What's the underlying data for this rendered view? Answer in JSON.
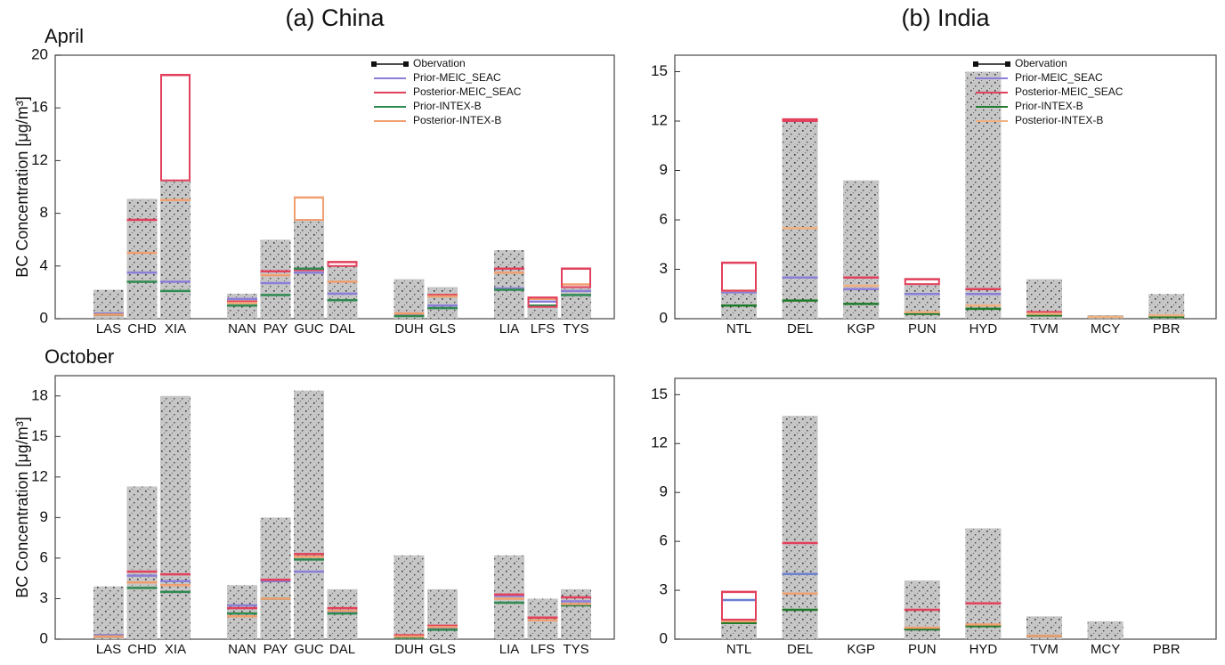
{
  "chart_data": [
    {
      "type": "bar",
      "title": "(a) China",
      "row_label": "April",
      "y_label": "BC Concentration [μg/m³]",
      "categories": [
        "LAS",
        "CHD",
        "XIA",
        null,
        "NAN",
        "PAY",
        "GUC",
        "DAL",
        null,
        "DUH",
        "GLS",
        null,
        "LIA",
        "LFS",
        "TYS"
      ],
      "ylim": [
        0,
        20
      ],
      "yticks": [
        0,
        4,
        8,
        12,
        16,
        20
      ],
      "legend": true,
      "legend_loc": "upper right",
      "series": [
        {
          "name": "Obervation",
          "color": "#c6c6c6",
          "values": [
            2.2,
            9.1,
            10.5,
            null,
            1.9,
            6.0,
            7.5,
            4.0,
            null,
            3.0,
            2.4,
            null,
            5.2,
            0.9,
            2.4
          ]
        },
        {
          "name": "Prior-MEIC_SEAC",
          "color": "#8a7fd8",
          "values": [
            0.4,
            3.5,
            2.8,
            null,
            1.5,
            2.7,
            3.5,
            1.9,
            null,
            0.3,
            1.0,
            null,
            2.3,
            1.3,
            2.1
          ]
        },
        {
          "name": "Posterior-MEIC_SEAC",
          "color": "#e2405c",
          "values": [
            0.3,
            7.5,
            18.5,
            null,
            1.3,
            3.6,
            3.7,
            4.3,
            null,
            0.4,
            1.8,
            null,
            3.8,
            1.6,
            3.8
          ]
        },
        {
          "name": "Prior-INTEX-B",
          "color": "#2e8a50",
          "values": [
            0.3,
            2.8,
            2.1,
            null,
            1.0,
            1.8,
            3.8,
            1.4,
            null,
            0.2,
            0.8,
            null,
            2.2,
            1.0,
            1.8
          ]
        },
        {
          "name": "Posterior-INTEX-B",
          "color": "#f0a070",
          "values": [
            0.3,
            5.0,
            9.0,
            null,
            1.2,
            3.3,
            9.2,
            2.8,
            null,
            0.4,
            1.7,
            null,
            3.5,
            1.5,
            2.6
          ]
        }
      ]
    },
    {
      "type": "bar",
      "title": "(b) India",
      "categories": [
        "NTL",
        "DEL",
        "KGP",
        "PUN",
        "HYD",
        "TVM",
        "MCY",
        "PBR"
      ],
      "ylim": [
        0,
        16
      ],
      "yticks": [
        0,
        3,
        6,
        9,
        12,
        15
      ],
      "legend": true,
      "legend_loc": "upper right",
      "series": [
        {
          "name": "Obervation",
          "color": "#c6c6c6",
          "values": [
            1.7,
            12.0,
            8.4,
            2.1,
            15.0,
            2.4,
            0.2,
            1.5
          ]
        },
        {
          "name": "Prior-MEIC_SEAC",
          "color": "#8a7fd8",
          "values": [
            1.6,
            2.5,
            1.8,
            1.5,
            1.5,
            0.3,
            0.1,
            0.2
          ]
        },
        {
          "name": "Posterior-MEIC_SEAC",
          "color": "#e2405c",
          "values": [
            3.4,
            12.1,
            2.5,
            2.4,
            1.8,
            0.4,
            0.1,
            0.2
          ]
        },
        {
          "name": "Prior-INTEX-B",
          "color": "#1f7a2a",
          "values": [
            0.8,
            1.1,
            0.9,
            0.3,
            0.6,
            0.2,
            0.1,
            0.1
          ]
        },
        {
          "name": "Posterior-INTEX-B",
          "color": "#f0b080",
          "values": [
            1.7,
            5.5,
            2.0,
            0.4,
            0.8,
            0.3,
            0.1,
            0.2
          ]
        }
      ]
    },
    {
      "type": "bar",
      "row_label": "October",
      "y_label": "BC Concentration [μg/m³]",
      "categories": [
        "LAS",
        "CHD",
        "XIA",
        null,
        "NAN",
        "PAY",
        "GUC",
        "DAL",
        null,
        "DUH",
        "GLS",
        null,
        "LIA",
        "LFS",
        "TYS"
      ],
      "ylim": [
        0,
        19.5
      ],
      "yticks": [
        0,
        3,
        6,
        9,
        12,
        15,
        18
      ],
      "legend": false,
      "series": [
        {
          "name": "Obervation",
          "color": "#c6c6c6",
          "values": [
            3.9,
            11.3,
            18.0,
            null,
            4.0,
            9.0,
            18.4,
            3.7,
            null,
            6.2,
            3.7,
            null,
            6.2,
            3.0,
            3.7
          ]
        },
        {
          "name": "Prior-MEIC_SEAC",
          "color": "#8a7fd8",
          "values": [
            0.3,
            4.7,
            4.3,
            null,
            2.5,
            4.3,
            5.0,
            2.0,
            null,
            0.2,
            0.8,
            null,
            3.2,
            1.6,
            2.8
          ]
        },
        {
          "name": "Posterior-MEIC_SEAC",
          "color": "#e2405c",
          "values": [
            0.2,
            5.0,
            4.8,
            null,
            2.3,
            4.4,
            6.3,
            2.3,
            null,
            0.3,
            1.0,
            null,
            3.3,
            1.6,
            3.1
          ]
        },
        {
          "name": "Prior-INTEX-B",
          "color": "#2e8a50",
          "values": [
            0.2,
            3.8,
            3.5,
            null,
            1.9,
            3.0,
            5.9,
            1.9,
            null,
            0.1,
            0.7,
            null,
            2.7,
            1.4,
            2.5
          ]
        },
        {
          "name": "Posterior-INTEX-B",
          "color": "#f0a070",
          "values": [
            0.2,
            4.2,
            4.0,
            null,
            1.7,
            3.0,
            6.1,
            2.1,
            null,
            0.2,
            0.9,
            null,
            3.0,
            1.4,
            2.6
          ]
        }
      ]
    },
    {
      "type": "bar",
      "categories": [
        "NTL",
        "DEL",
        "KGP",
        "PUN",
        "HYD",
        "TVM",
        "MCY",
        "PBR"
      ],
      "ylim": [
        0,
        16
      ],
      "yticks": [
        0,
        3,
        6,
        9,
        12,
        15
      ],
      "legend": false,
      "series": [
        {
          "name": "Obervation",
          "color": "#c6c6c6",
          "values": [
            1.2,
            13.7,
            null,
            3.6,
            6.8,
            1.4,
            1.1,
            null
          ]
        },
        {
          "name": "Prior-MEIC_SEAC",
          "color": "#6a7fd0",
          "values": [
            2.4,
            4.0,
            null,
            0.6,
            2.2,
            0.2,
            null,
            null
          ]
        },
        {
          "name": "Posterior-MEIC_SEAC",
          "color": "#e2405c",
          "values": [
            2.9,
            5.9,
            null,
            1.8,
            2.2,
            0.2,
            null,
            null
          ]
        },
        {
          "name": "Prior-INTEX-B",
          "color": "#1f7a2a",
          "values": [
            1.0,
            1.8,
            null,
            0.6,
            0.8,
            0.2,
            null,
            null
          ]
        },
        {
          "name": "Posterior-INTEX-B",
          "color": "#f0a070",
          "values": [
            1.1,
            2.8,
            null,
            0.7,
            0.9,
            0.2,
            null,
            null
          ]
        }
      ]
    }
  ]
}
